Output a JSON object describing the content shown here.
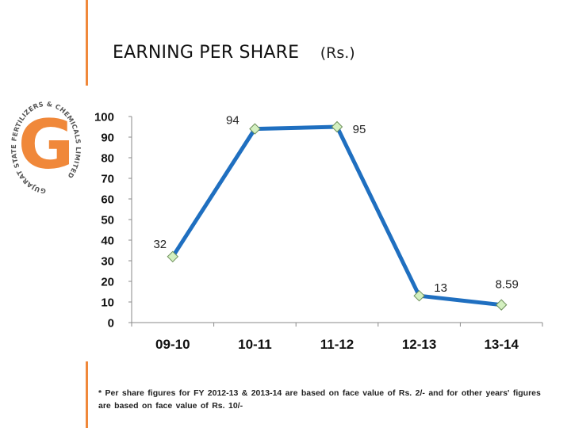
{
  "header": {
    "title": "EARNING PER SHARE",
    "unit": "(Rs.)"
  },
  "logo": {
    "ring_text": "GUJARAT STATE FERTILIZERS & CHEMICALS LIMITED",
    "letter": "G",
    "color": "#f0883a"
  },
  "colors": {
    "accent": "#f0883a",
    "line": "#1f6fc0",
    "marker": "#d4f0c0"
  },
  "chart_data": {
    "type": "line",
    "categories": [
      "09-10",
      "10-11",
      "11-12",
      "12-13",
      "13-14"
    ],
    "values": [
      32,
      94,
      95,
      13,
      8.59
    ],
    "data_labels": [
      "32",
      "94",
      "95",
      "13",
      "8.59"
    ],
    "yticks": [
      "0",
      "10",
      "20",
      "30",
      "40",
      "50",
      "60",
      "70",
      "80",
      "90",
      "100"
    ],
    "ylim": [
      0,
      100
    ],
    "grid": false,
    "legend": "none"
  },
  "footnote": "* Per share figures for FY 2012-13 & 2013-14 are based on face value of Rs. 2/- and for other years' figures are based on face value of Rs. 10/-"
}
